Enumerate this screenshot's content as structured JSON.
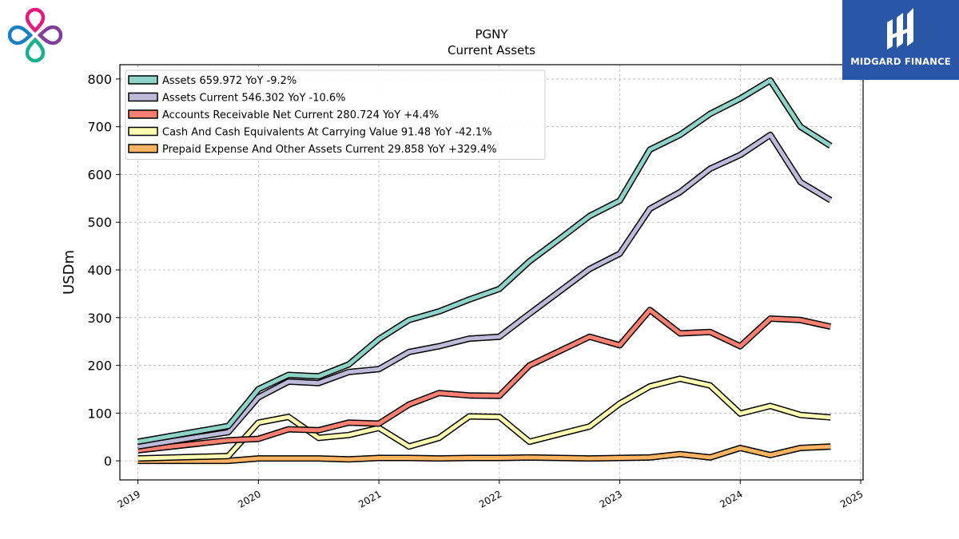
{
  "chart_data": {
    "type": "line",
    "title": "PGNY",
    "subtitle": "Current  Assets",
    "ylabel": "USDm",
    "xlabel": "",
    "xlim": [
      2018.85,
      2025.02
    ],
    "ylim": [
      -40,
      830
    ],
    "x_ticks": [
      2019,
      2020,
      2021,
      2022,
      2023,
      2024,
      2025
    ],
    "y_ticks": [
      0,
      100,
      200,
      300,
      400,
      500,
      600,
      700,
      800
    ],
    "grid": true,
    "legend_position": "top-left",
    "x": [
      2019.0,
      2019.75,
      2020.0,
      2020.25,
      2020.5,
      2020.75,
      2021.0,
      2021.25,
      2021.5,
      2021.75,
      2022.0,
      2022.25,
      2022.5,
      2022.75,
      2023.0,
      2023.25,
      2023.5,
      2023.75,
      2024.0,
      2024.25,
      2024.5,
      2024.75
    ],
    "series": [
      {
        "name": "Assets  659.972 YoY -9.2%",
        "color": "#8dd3c7",
        "values": [
          40,
          73,
          150,
          180,
          177,
          202,
          255,
          295,
          313,
          338,
          360,
          418,
          465,
          513,
          545,
          652,
          683,
          727,
          759,
          797,
          700,
          660
        ]
      },
      {
        "name": "Assets Current  546.302 YoY -10.6%",
        "color": "#bebada",
        "values": [
          30,
          60,
          133,
          166,
          163,
          186,
          192,
          228,
          240,
          256,
          260,
          308,
          355,
          402,
          434,
          528,
          563,
          612,
          641,
          683,
          584,
          546
        ]
      },
      {
        "name": "Accounts Receivable Net Current  280.724 YoY +4.4%",
        "color": "#fb8072",
        "values": [
          22,
          43,
          46,
          66,
          64,
          80,
          78,
          118,
          142,
          137,
          136,
          200,
          230,
          260,
          242,
          316,
          267,
          270,
          240,
          298,
          295,
          281
        ]
      },
      {
        "name": "Cash And Cash Equivalents At Carrying Value  91.48 YoY -42.1%",
        "color": "#ffffb3",
        "values": [
          5,
          10,
          80,
          92,
          48,
          54,
          69,
          30,
          48,
          93,
          92,
          40,
          56,
          72,
          120,
          156,
          172,
          158,
          99,
          115,
          96,
          91
        ]
      },
      {
        "name": "Prepaid Expense And Other Assets Current  29.858 YoY +329.4%",
        "color": "#fdb462",
        "values": [
          0,
          0,
          5,
          5,
          5,
          3,
          6,
          6,
          5,
          6,
          6,
          7,
          6,
          5,
          6,
          7,
          14,
          7,
          27,
          12,
          27,
          30
        ]
      }
    ]
  },
  "branding": {
    "name": "MIDGARD FINANCE",
    "bg_color": "#2a56a8",
    "logo_petal_colors": [
      "#e6197e",
      "#7f3f98",
      "#19b08e",
      "#1b7fc1"
    ]
  }
}
